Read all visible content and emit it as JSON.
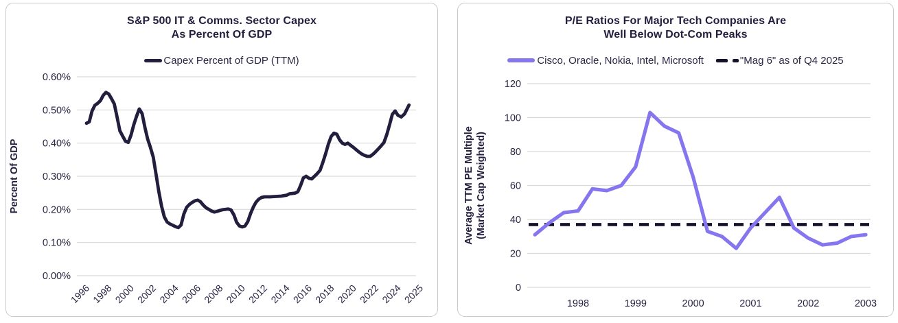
{
  "theme": {
    "background": "#ffffff",
    "card_border": "#c8c9d0",
    "text_navy": "#221e3e",
    "grid_color": "#d9d9d9",
    "capex_line_color": "#221e3e",
    "pe_line_color": "#8576f0",
    "mag6_dash_color": "#15112b"
  },
  "chart_data": [
    {
      "type": "line",
      "title_lines": [
        "S&P 500 IT & Comms. Sector Capex",
        "As Percent Of GDP"
      ],
      "legend": [
        {
          "label": "Capex Percent of GDP (TTM)",
          "color": "#221e3e",
          "style": "solid"
        }
      ],
      "ylabel_lines": [
        "Percent Of GDP"
      ],
      "ylim": [
        0,
        0.6
      ],
      "grid": true,
      "y_ticks": [
        {
          "value": 0.0,
          "label": "0.00%"
        },
        {
          "value": 0.1,
          "label": "0.10%"
        },
        {
          "value": 0.2,
          "label": "0.20%"
        },
        {
          "value": 0.3,
          "label": "0.30%"
        },
        {
          "value": 0.4,
          "label": "0.40%"
        },
        {
          "value": 0.5,
          "label": "0.50%"
        },
        {
          "value": 0.6,
          "label": "0.60%"
        }
      ],
      "x_ticks": [
        {
          "value": 1996,
          "label": "1996"
        },
        {
          "value": 1998,
          "label": "1998"
        },
        {
          "value": 2000,
          "label": "2000"
        },
        {
          "value": 2002,
          "label": "2002"
        },
        {
          "value": 2004,
          "label": "2004"
        },
        {
          "value": 2006,
          "label": "2006"
        },
        {
          "value": 2008,
          "label": "2008"
        },
        {
          "value": 2010,
          "label": "2010"
        },
        {
          "value": 2012,
          "label": "2012"
        },
        {
          "value": 2014,
          "label": "2014"
        },
        {
          "value": 2016,
          "label": "2016"
        },
        {
          "value": 2018,
          "label": "2018"
        },
        {
          "value": 2020,
          "label": "2020"
        },
        {
          "value": 2022,
          "label": "2022"
        },
        {
          "value": 2024,
          "label": "2024"
        },
        {
          "value": 2025,
          "label": "2025"
        }
      ],
      "x_map": [
        [
          1996,
          0
        ],
        [
          2024,
          14
        ],
        [
          2026,
          16
        ]
      ],
      "series": [
        {
          "name": "Capex Percent of GDP (TTM)",
          "color": "#221e3e",
          "width": 4.8,
          "points": [
            [
              1996.0,
              0.46
            ],
            [
              1996.25,
              0.464
            ],
            [
              1996.5,
              0.497
            ],
            [
              1996.75,
              0.514
            ],
            [
              1997.0,
              0.52
            ],
            [
              1997.25,
              0.528
            ],
            [
              1997.5,
              0.544
            ],
            [
              1997.75,
              0.553
            ],
            [
              1998.0,
              0.548
            ],
            [
              1998.25,
              0.534
            ],
            [
              1998.5,
              0.518
            ],
            [
              1998.75,
              0.478
            ],
            [
              1999.0,
              0.437
            ],
            [
              1999.25,
              0.421
            ],
            [
              1999.5,
              0.406
            ],
            [
              1999.75,
              0.402
            ],
            [
              2000.0,
              0.424
            ],
            [
              2000.25,
              0.455
            ],
            [
              2000.5,
              0.481
            ],
            [
              2000.75,
              0.503
            ],
            [
              2001.0,
              0.489
            ],
            [
              2001.25,
              0.447
            ],
            [
              2001.5,
              0.412
            ],
            [
              2001.75,
              0.387
            ],
            [
              2002.0,
              0.358
            ],
            [
              2002.25,
              0.306
            ],
            [
              2002.5,
              0.254
            ],
            [
              2002.75,
              0.21
            ],
            [
              2003.0,
              0.177
            ],
            [
              2003.25,
              0.162
            ],
            [
              2003.5,
              0.156
            ],
            [
              2003.75,
              0.152
            ],
            [
              2004.0,
              0.148
            ],
            [
              2004.25,
              0.145
            ],
            [
              2004.5,
              0.153
            ],
            [
              2004.75,
              0.186
            ],
            [
              2005.0,
              0.206
            ],
            [
              2005.25,
              0.215
            ],
            [
              2005.5,
              0.221
            ],
            [
              2005.75,
              0.226
            ],
            [
              2006.0,
              0.228
            ],
            [
              2006.25,
              0.223
            ],
            [
              2006.5,
              0.213
            ],
            [
              2006.75,
              0.205
            ],
            [
              2007.0,
              0.2
            ],
            [
              2007.25,
              0.195
            ],
            [
              2007.5,
              0.192
            ],
            [
              2007.75,
              0.194
            ],
            [
              2008.0,
              0.197
            ],
            [
              2008.25,
              0.199
            ],
            [
              2008.5,
              0.2
            ],
            [
              2008.75,
              0.201
            ],
            [
              2009.0,
              0.198
            ],
            [
              2009.25,
              0.184
            ],
            [
              2009.5,
              0.161
            ],
            [
              2009.75,
              0.15
            ],
            [
              2010.0,
              0.147
            ],
            [
              2010.25,
              0.15
            ],
            [
              2010.5,
              0.163
            ],
            [
              2010.75,
              0.187
            ],
            [
              2011.0,
              0.207
            ],
            [
              2011.25,
              0.222
            ],
            [
              2011.5,
              0.231
            ],
            [
              2011.75,
              0.236
            ],
            [
              2012.0,
              0.238
            ],
            [
              2012.5,
              0.238
            ],
            [
              2013.0,
              0.239
            ],
            [
              2013.5,
              0.24
            ],
            [
              2014.0,
              0.243
            ],
            [
              2014.25,
              0.247
            ],
            [
              2014.5,
              0.248
            ],
            [
              2014.75,
              0.249
            ],
            [
              2015.0,
              0.253
            ],
            [
              2015.25,
              0.272
            ],
            [
              2015.5,
              0.295
            ],
            [
              2015.75,
              0.3
            ],
            [
              2016.0,
              0.294
            ],
            [
              2016.25,
              0.292
            ],
            [
              2016.5,
              0.3
            ],
            [
              2016.75,
              0.308
            ],
            [
              2017.0,
              0.318
            ],
            [
              2017.25,
              0.342
            ],
            [
              2017.5,
              0.368
            ],
            [
              2017.75,
              0.397
            ],
            [
              2018.0,
              0.42
            ],
            [
              2018.25,
              0.43
            ],
            [
              2018.5,
              0.427
            ],
            [
              2018.75,
              0.41
            ],
            [
              2019.0,
              0.4
            ],
            [
              2019.25,
              0.396
            ],
            [
              2019.5,
              0.4
            ],
            [
              2019.75,
              0.393
            ],
            [
              2020.0,
              0.387
            ],
            [
              2020.25,
              0.38
            ],
            [
              2020.5,
              0.373
            ],
            [
              2020.75,
              0.367
            ],
            [
              2021.0,
              0.363
            ],
            [
              2021.25,
              0.36
            ],
            [
              2021.5,
              0.36
            ],
            [
              2021.75,
              0.366
            ],
            [
              2022.0,
              0.374
            ],
            [
              2022.25,
              0.383
            ],
            [
              2022.5,
              0.392
            ],
            [
              2022.75,
              0.402
            ],
            [
              2023.0,
              0.426
            ],
            [
              2023.25,
              0.456
            ],
            [
              2023.5,
              0.487
            ],
            [
              2023.75,
              0.497
            ],
            [
              2024.0,
              0.484
            ],
            [
              2024.15,
              0.479
            ],
            [
              2024.3,
              0.488
            ],
            [
              2024.5,
              0.515
            ]
          ]
        }
      ]
    },
    {
      "type": "line",
      "title_lines": [
        "P/E Ratios For Major Tech Companies Are",
        "Well Below Dot-Com Peaks"
      ],
      "legend": [
        {
          "label": "Cisco, Oracle, Nokia, Intel, Microsoft",
          "color": "#8576f0",
          "style": "solid"
        },
        {
          "label": "\"Mag 6\" as of Q4 2025",
          "color": "#15112b",
          "style": "dashed"
        }
      ],
      "ylabel_lines": [
        "Average TTM PE Multiple",
        "(Market Cap Weighted)"
      ],
      "ylim": [
        0,
        120
      ],
      "grid": true,
      "y_ticks": [
        {
          "value": 0,
          "label": "0"
        },
        {
          "value": 20,
          "label": "20"
        },
        {
          "value": 40,
          "label": "40"
        },
        {
          "value": 60,
          "label": "60"
        },
        {
          "value": 80,
          "label": "80"
        },
        {
          "value": 100,
          "label": "100"
        },
        {
          "value": 120,
          "label": "120"
        }
      ],
      "x_ticks": [
        {
          "value": 1998,
          "label": "1998"
        },
        {
          "value": 1999,
          "label": "1999"
        },
        {
          "value": 2000,
          "label": "2000"
        },
        {
          "value": 2001,
          "label": "2001"
        },
        {
          "value": 2002,
          "label": "2002"
        },
        {
          "value": 2003,
          "label": "2003"
        }
      ],
      "x_map": [
        [
          1997,
          0
        ],
        [
          2003,
          6
        ]
      ],
      "refline": {
        "name": "\"Mag 6\" as of Q4 2025",
        "value": 37,
        "color": "#15112b",
        "style": "dashed"
      },
      "series": [
        {
          "name": "Cisco, Oracle, Nokia, Intel, Microsoft",
          "color": "#8576f0",
          "width": 5.2,
          "points": [
            [
              1997.25,
              31
            ],
            [
              1997.5,
              38
            ],
            [
              1997.75,
              44
            ],
            [
              1998.0,
              45
            ],
            [
              1998.25,
              58
            ],
            [
              1998.5,
              57
            ],
            [
              1998.75,
              60
            ],
            [
              1999.0,
              71
            ],
            [
              1999.25,
              103
            ],
            [
              1999.5,
              95
            ],
            [
              1999.75,
              91
            ],
            [
              2000.0,
              65
            ],
            [
              2000.25,
              33
            ],
            [
              2000.5,
              30
            ],
            [
              2000.75,
              23
            ],
            [
              2001.0,
              35
            ],
            [
              2001.25,
              44
            ],
            [
              2001.5,
              53
            ],
            [
              2001.75,
              35
            ],
            [
              2002.0,
              29
            ],
            [
              2002.25,
              25
            ],
            [
              2002.5,
              26
            ],
            [
              2002.75,
              30
            ],
            [
              2003.0,
              31
            ]
          ]
        }
      ]
    }
  ]
}
